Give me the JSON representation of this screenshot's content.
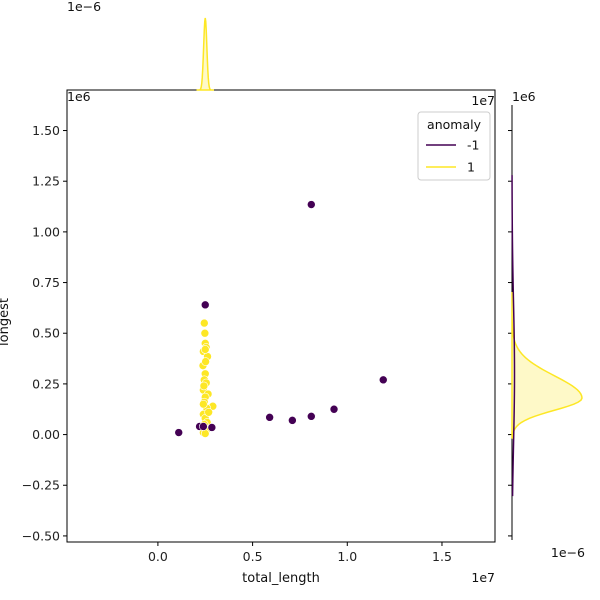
{
  "chart_data": {
    "type": "scatter",
    "xlabel": "total_length",
    "ylabel": "longest",
    "x_exponent": "1e7",
    "y_exponent": "1e6",
    "xlim": [
      -0.48,
      1.78
    ],
    "ylim": [
      -0.53,
      1.7
    ],
    "x_ticks": [
      "0.0",
      "0.5",
      "1.0",
      "1.5"
    ],
    "x_tick_values": [
      0.0,
      0.5,
      1.0,
      1.5
    ],
    "y_ticks": [
      "−0.50",
      "−0.25",
      "0.00",
      "0.25",
      "0.50",
      "0.75",
      "1.00",
      "1.25",
      "1.50"
    ],
    "y_tick_values": [
      -0.5,
      -0.25,
      0.0,
      0.25,
      0.5,
      0.75,
      1.0,
      1.25,
      1.5
    ],
    "top_marginal_exponent": "1e−6",
    "right_marginal_exponent": "1e6",
    "right_marginal_x_exponent": "1e−6",
    "legend": {
      "title": "anomaly",
      "placement": "top-right",
      "entries": [
        {
          "label": "-1",
          "color": "#440154"
        },
        {
          "label": "1",
          "color": "#fde725"
        }
      ]
    },
    "series": [
      {
        "name": "-1",
        "color": "#440154",
        "points": [
          [
            0.11,
            0.01
          ],
          [
            0.22,
            0.04
          ],
          [
            0.285,
            0.035
          ],
          [
            0.59,
            0.085
          ],
          [
            0.71,
            0.07
          ],
          [
            0.81,
            0.09
          ],
          [
            0.81,
            1.135
          ],
          [
            0.93,
            0.125
          ],
          [
            1.19,
            0.27
          ],
          [
            0.25,
            0.64
          ],
          [
            0.24,
            0.04
          ]
        ]
      },
      {
        "name": "1",
        "color": "#fde725",
        "points": [
          [
            0.245,
            0.55
          ],
          [
            0.25,
            0.45
          ],
          [
            0.24,
            0.41
          ],
          [
            0.255,
            0.43
          ],
          [
            0.262,
            0.385
          ],
          [
            0.238,
            0.34
          ],
          [
            0.25,
            0.3
          ],
          [
            0.245,
            0.27
          ],
          [
            0.255,
            0.255
          ],
          [
            0.24,
            0.22
          ],
          [
            0.265,
            0.2
          ],
          [
            0.25,
            0.185
          ],
          [
            0.245,
            0.16
          ],
          [
            0.29,
            0.14
          ],
          [
            0.258,
            0.13
          ],
          [
            0.24,
            0.1
          ],
          [
            0.25,
            0.08
          ],
          [
            0.26,
            0.06
          ],
          [
            0.245,
            0.05
          ],
          [
            0.25,
            0.03
          ],
          [
            0.255,
            0.02
          ],
          [
            0.24,
            0.01
          ],
          [
            0.25,
            0.005
          ],
          [
            0.248,
            0.5
          ],
          [
            0.252,
            0.36
          ],
          [
            0.243,
            0.24
          ],
          [
            0.268,
            0.11
          ],
          [
            0.25,
            0.42
          ],
          [
            0.24,
            0.15
          ]
        ]
      }
    ],
    "marginals": {
      "top": {
        "series": "1",
        "peak_x": 0.25
      },
      "right": {
        "series": "1",
        "peak_y": 0.18
      }
    }
  }
}
